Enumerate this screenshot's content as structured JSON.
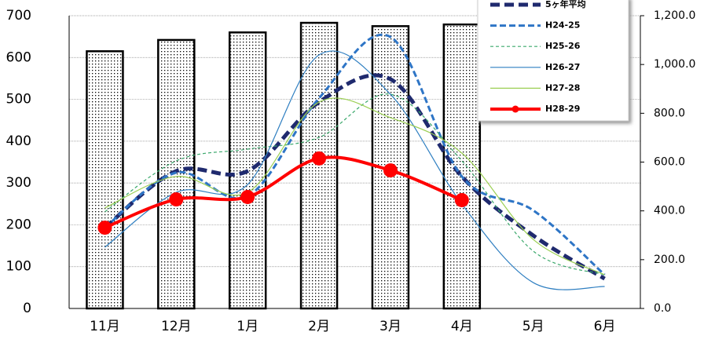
{
  "chart_data": {
    "type": "combo",
    "categories": [
      "11月",
      "12月",
      "1月",
      "2月",
      "3月",
      "4月",
      "5月",
      "6月"
    ],
    "bars": {
      "values": [
        615,
        642,
        660,
        683,
        675,
        679,
        null,
        null
      ],
      "color": "#000000"
    },
    "series": [
      {
        "name": "5ヶ年平均",
        "color": "#1f2a6e",
        "axis": "y2",
        "values": [
          331,
          563,
          563,
          846,
          940,
          541,
          299,
          122
        ]
      },
      {
        "name": "H24-25",
        "color": "#2e75c6",
        "axis": "y2",
        "values": [
          331,
          557,
          460,
          862,
          1113,
          541,
          402,
          138
        ]
      },
      {
        "name": "H25-26",
        "color": "#3aa86b",
        "axis": "y2",
        "values": [
          396,
          605,
          653,
          701,
          878,
          605,
          235,
          138
        ]
      },
      {
        "name": "H26-27",
        "color": "#2f7fc1",
        "axis": "y2",
        "values": [
          251,
          476,
          508,
          1039,
          878,
          428,
          106,
          90
        ]
      },
      {
        "name": "H27-28",
        "color": "#9bcf53",
        "axis": "y2",
        "values": [
          412,
          541,
          476,
          846,
          782,
          637,
          283,
          138
        ]
      },
      {
        "name": "H28-29",
        "color": "#ff0000",
        "axis": "y2",
        "values": [
          331,
          447,
          457,
          615,
          566,
          444,
          null,
          null
        ]
      }
    ],
    "ylim": [
      0,
      700
    ],
    "yticks": [
      0,
      100,
      200,
      300,
      400,
      500,
      600,
      700
    ],
    "y2lim": [
      0,
      1200
    ],
    "y2ticks": [
      {
        "value": 0,
        "label": "0.0"
      },
      {
        "value": 200,
        "label": "200.0"
      },
      {
        "value": 400,
        "label": "400.0"
      },
      {
        "value": 600,
        "label": "600.0"
      },
      {
        "value": 800,
        "label": "800.0"
      },
      {
        "value": 1000,
        "label": "1,000.0"
      },
      {
        "value": 1200,
        "label": "1,200.0"
      }
    ],
    "grid": true
  }
}
